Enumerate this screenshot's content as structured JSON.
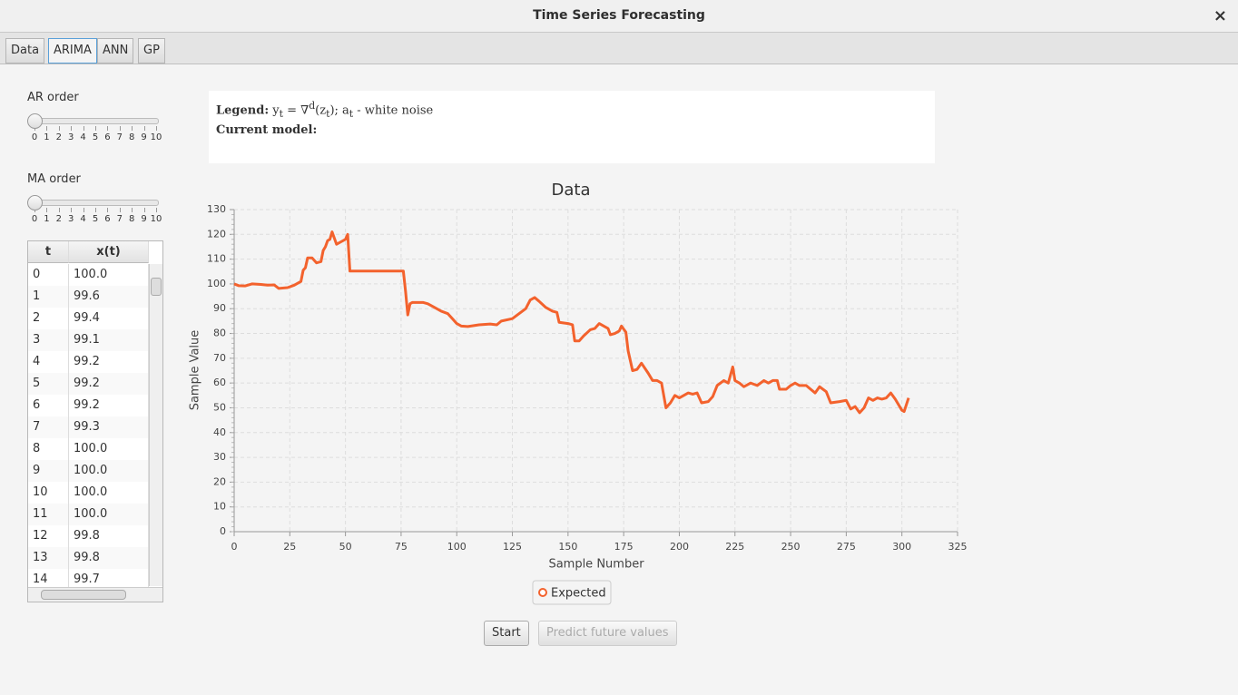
{
  "window": {
    "title": "Time Series Forecasting",
    "close": "×"
  },
  "tabs": {
    "labels": [
      "Data",
      "ARIMA",
      "ANN",
      "GP"
    ],
    "active": 1
  },
  "ar": {
    "label": "AR order",
    "value": 0,
    "ticks": [
      0,
      1,
      2,
      3,
      4,
      5,
      6,
      7,
      8,
      9,
      10
    ]
  },
  "ma": {
    "label": "MA order",
    "value": 0,
    "ticks": [
      0,
      1,
      2,
      3,
      4,
      5,
      6,
      7,
      8,
      9,
      10
    ]
  },
  "table": {
    "headers": [
      "t",
      "x(t)"
    ],
    "rows": [
      [
        0,
        "100.0"
      ],
      [
        1,
        "99.6"
      ],
      [
        2,
        "99.4"
      ],
      [
        3,
        "99.1"
      ],
      [
        4,
        "99.2"
      ],
      [
        5,
        "99.2"
      ],
      [
        6,
        "99.2"
      ],
      [
        7,
        "99.3"
      ],
      [
        8,
        "100.0"
      ],
      [
        9,
        "100.0"
      ],
      [
        10,
        "100.0"
      ],
      [
        11,
        "100.0"
      ],
      [
        12,
        "99.8"
      ],
      [
        13,
        "99.8"
      ],
      [
        14,
        "99.7"
      ]
    ]
  },
  "legend_box": {
    "label": "Legend:",
    "pieces": [
      "y",
      "t",
      " = ∇",
      "d",
      "(z",
      "t",
      "); a",
      "t",
      " - white noise"
    ],
    "model_label": "Current model:"
  },
  "chart_data": {
    "type": "line",
    "title": "Data",
    "x_label": "Sample Number",
    "y_label": "Sample Value",
    "x": [
      0,
      2,
      5,
      8,
      12,
      15,
      18,
      20,
      24,
      27,
      29,
      30,
      31,
      32,
      33,
      35,
      37,
      39,
      40,
      41,
      42,
      43,
      44,
      46,
      48,
      50,
      51,
      52,
      60,
      70,
      76,
      77,
      78,
      79,
      80,
      85,
      87,
      90,
      93,
      96,
      98,
      100,
      102,
      105,
      110,
      115,
      118,
      120,
      125,
      128,
      131,
      133,
      135,
      137,
      140,
      143,
      145,
      146,
      150,
      152,
      153,
      155,
      157,
      160,
      162,
      164,
      166,
      168,
      169,
      171,
      173,
      174,
      176,
      177,
      179,
      181,
      183,
      186,
      188,
      190,
      192,
      194,
      196,
      198,
      200,
      202,
      204,
      206,
      208,
      210,
      213,
      215,
      217,
      220,
      222,
      224,
      225,
      227,
      229,
      232,
      235,
      238,
      240,
      242,
      244,
      245,
      248,
      250,
      252,
      254,
      257,
      259,
      261,
      263,
      266,
      268,
      272,
      275,
      277,
      279,
      281,
      283,
      285,
      287,
      289,
      291,
      293,
      295,
      297,
      300,
      301,
      303
    ],
    "series": [
      {
        "name": "Expected",
        "color": "#f3622d",
        "values": [
          100,
          99.3,
          99.2,
          100,
          99.8,
          99.5,
          99.6,
          98.2,
          98.5,
          99.5,
          100.5,
          101,
          105.5,
          106.5,
          110.5,
          110.5,
          108.5,
          109,
          113.5,
          115,
          117.5,
          118,
          121,
          116,
          117,
          118,
          120,
          105.2,
          105.2,
          105.2,
          105.2,
          97,
          87.5,
          92,
          92.5,
          92.5,
          92,
          90.5,
          89,
          88,
          86,
          84,
          83,
          82.8,
          83.5,
          83.8,
          83.5,
          85,
          86,
          88,
          90,
          93.5,
          94.5,
          93,
          90.5,
          89,
          88.5,
          84.5,
          84,
          83.5,
          77,
          77,
          79,
          81.5,
          82,
          84,
          83,
          82,
          79.5,
          80,
          81,
          83,
          80.5,
          73,
          65,
          65.5,
          68,
          64,
          61,
          61,
          60,
          50,
          52,
          55,
          54,
          55,
          56,
          55.5,
          56,
          52,
          52.5,
          54.5,
          59,
          61,
          60,
          66.5,
          61,
          60,
          58.5,
          60,
          59,
          61,
          60,
          61,
          61,
          57.5,
          57.5,
          59,
          60,
          59,
          59,
          57.5,
          56,
          58.5,
          56.5,
          52,
          52.5,
          53,
          49.5,
          50.5,
          48,
          50,
          54,
          53,
          54,
          53.5,
          54,
          56,
          53.5,
          49,
          48.5,
          54
        ]
      }
    ],
    "xlim": [
      0,
      325
    ],
    "xticks": [
      0,
      25,
      50,
      75,
      100,
      125,
      150,
      175,
      200,
      225,
      250,
      275,
      300,
      325
    ],
    "ylim": [
      0,
      130
    ],
    "yticks": [
      0,
      10,
      20,
      30,
      40,
      50,
      60,
      70,
      80,
      90,
      100,
      110,
      120,
      130
    ],
    "grid": true,
    "legend": "bottom"
  },
  "buttons": [
    {
      "label": "Start",
      "enabled": true
    },
    {
      "label": "Predict future values",
      "enabled": false
    }
  ]
}
